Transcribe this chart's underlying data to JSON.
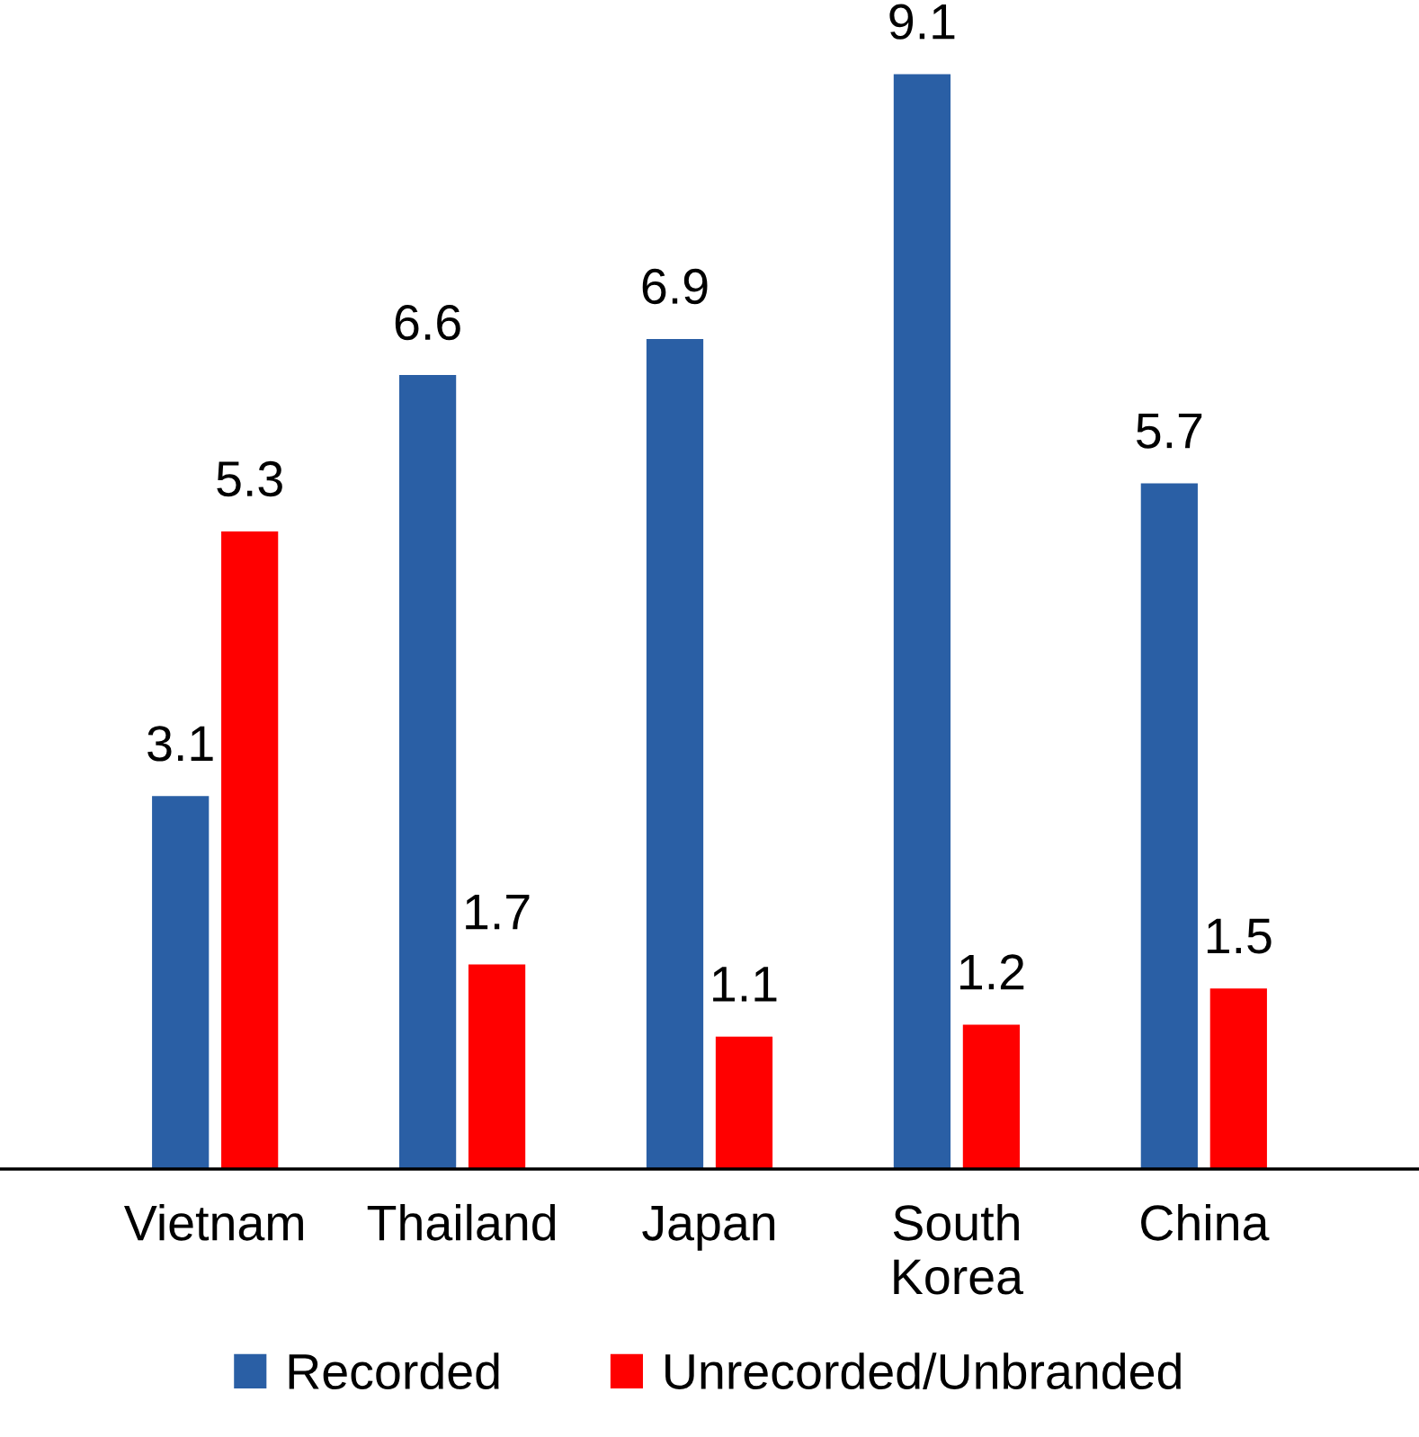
{
  "chart_data": {
    "type": "bar",
    "categories": [
      "Vietnam",
      "Thailand",
      "Japan",
      "South\nKorea",
      "China"
    ],
    "series": [
      {
        "name": "Recorded",
        "color": "#2a5fa5",
        "values": [
          3.1,
          6.6,
          6.9,
          9.1,
          5.7
        ]
      },
      {
        "name": "Unrecorded/Unbranded",
        "color": "#ff0000",
        "values": [
          5.3,
          1.7,
          1.1,
          1.2,
          1.5
        ]
      }
    ],
    "data_labels": true,
    "legend": "bottom",
    "grid": false
  }
}
